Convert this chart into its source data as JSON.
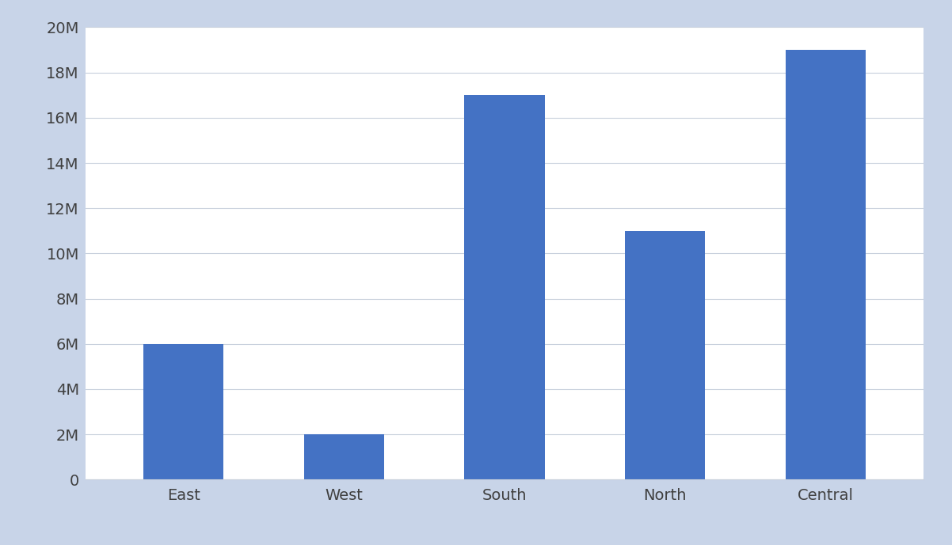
{
  "categories": [
    "East",
    "West",
    "South",
    "North",
    "Central"
  ],
  "values": [
    6000000,
    2000000,
    17000000,
    11000000,
    19000000
  ],
  "bar_color": "#4472C4",
  "background_color": "#ffffff",
  "plot_bg_color": "#ffffff",
  "outer_border_color": "#c8d4e8",
  "ylim": [
    0,
    20000000
  ],
  "yticks": [
    0,
    2000000,
    4000000,
    6000000,
    8000000,
    10000000,
    12000000,
    14000000,
    16000000,
    18000000,
    20000000
  ],
  "ytick_labels": [
    "0",
    "2M",
    "4M",
    "6M",
    "8M",
    "10M",
    "12M",
    "14M",
    "16M",
    "18M",
    "20M"
  ],
  "grid_color": "#c8d0dc",
  "tick_label_color": "#404040",
  "tick_label_fontsize": 14,
  "bar_width": 0.5,
  "figsize": [
    12.02,
    6.89
  ],
  "dpi": 100
}
